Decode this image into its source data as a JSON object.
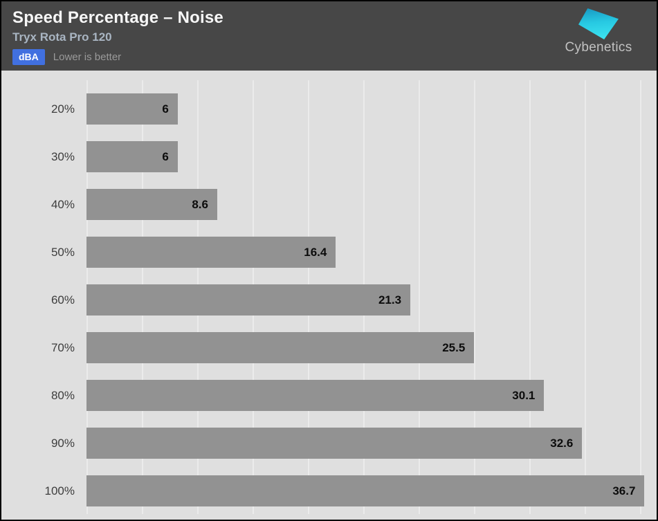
{
  "header": {
    "title": "Speed Percentage – Noise",
    "subtitle": "Tryx Rota Pro 120",
    "unit_badge": "dBA",
    "note": "Lower is better",
    "logo_text": "Cybenetics"
  },
  "colors": {
    "header_bg": "#474747",
    "chart_bg": "#dfdfdf",
    "bar": "#929292",
    "badge_blue": "#4170e0",
    "logo_cyan": "#2fd6ec",
    "subtitle_gray_blue": "#a9b5c2"
  },
  "chart_data": {
    "type": "bar",
    "orientation": "horizontal",
    "title": "Speed Percentage – Noise",
    "subtitle": "Tryx Rota Pro 120",
    "unit": "dBA",
    "note": "Lower is better",
    "categories": [
      "20%",
      "30%",
      "40%",
      "50%",
      "60%",
      "70%",
      "80%",
      "90%",
      "100%"
    ],
    "values": [
      6,
      6,
      8.6,
      16.4,
      21.3,
      25.5,
      30.1,
      32.6,
      36.7
    ],
    "value_labels": [
      "6",
      "6",
      "8.6",
      "16.4",
      "21.3",
      "25.5",
      "30.1",
      "32.6",
      "36.7"
    ],
    "xlabel": "",
    "ylabel": "",
    "xlim": [
      0,
      37.5
    ],
    "grid": "vertical",
    "gridline_count": 11,
    "legend": "none",
    "value_label_position": "inside-end"
  }
}
